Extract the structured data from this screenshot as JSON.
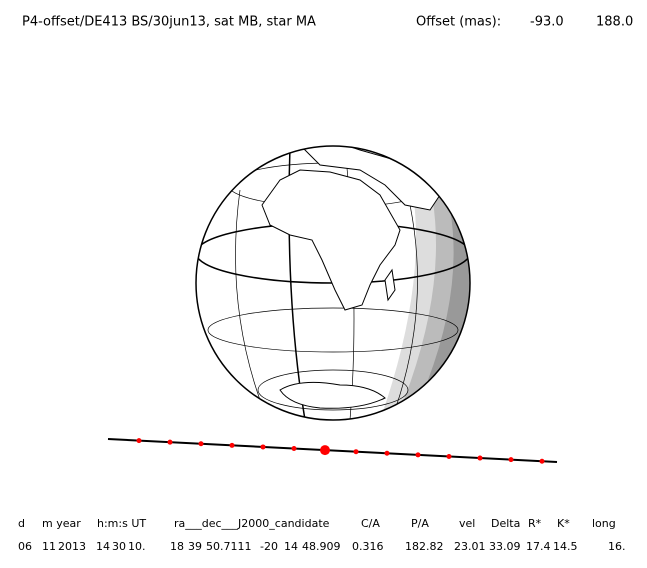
{
  "header": {
    "title": "P4-offset/DE413 BS/30jun13, sat MB, star MA",
    "offset_label": "Offset (mas):",
    "offset_values": [
      "-93.0",
      "188.0"
    ]
  },
  "table": {
    "columns": [
      "d",
      "m year",
      "h:m:s UT",
      "ra___dec___J2000_candidate",
      "C/A",
      "P/A",
      "vel",
      "Delta",
      "R*",
      "K*",
      "long"
    ],
    "row": [
      "06",
      "11",
      "2013",
      "14",
      "30",
      "10.",
      "18",
      "39",
      "50.7111",
      "-20",
      "14",
      "48.909",
      "0.316",
      "182.82",
      "23.01",
      "33.09",
      "17.4",
      "14.5",
      "16."
    ]
  }
}
